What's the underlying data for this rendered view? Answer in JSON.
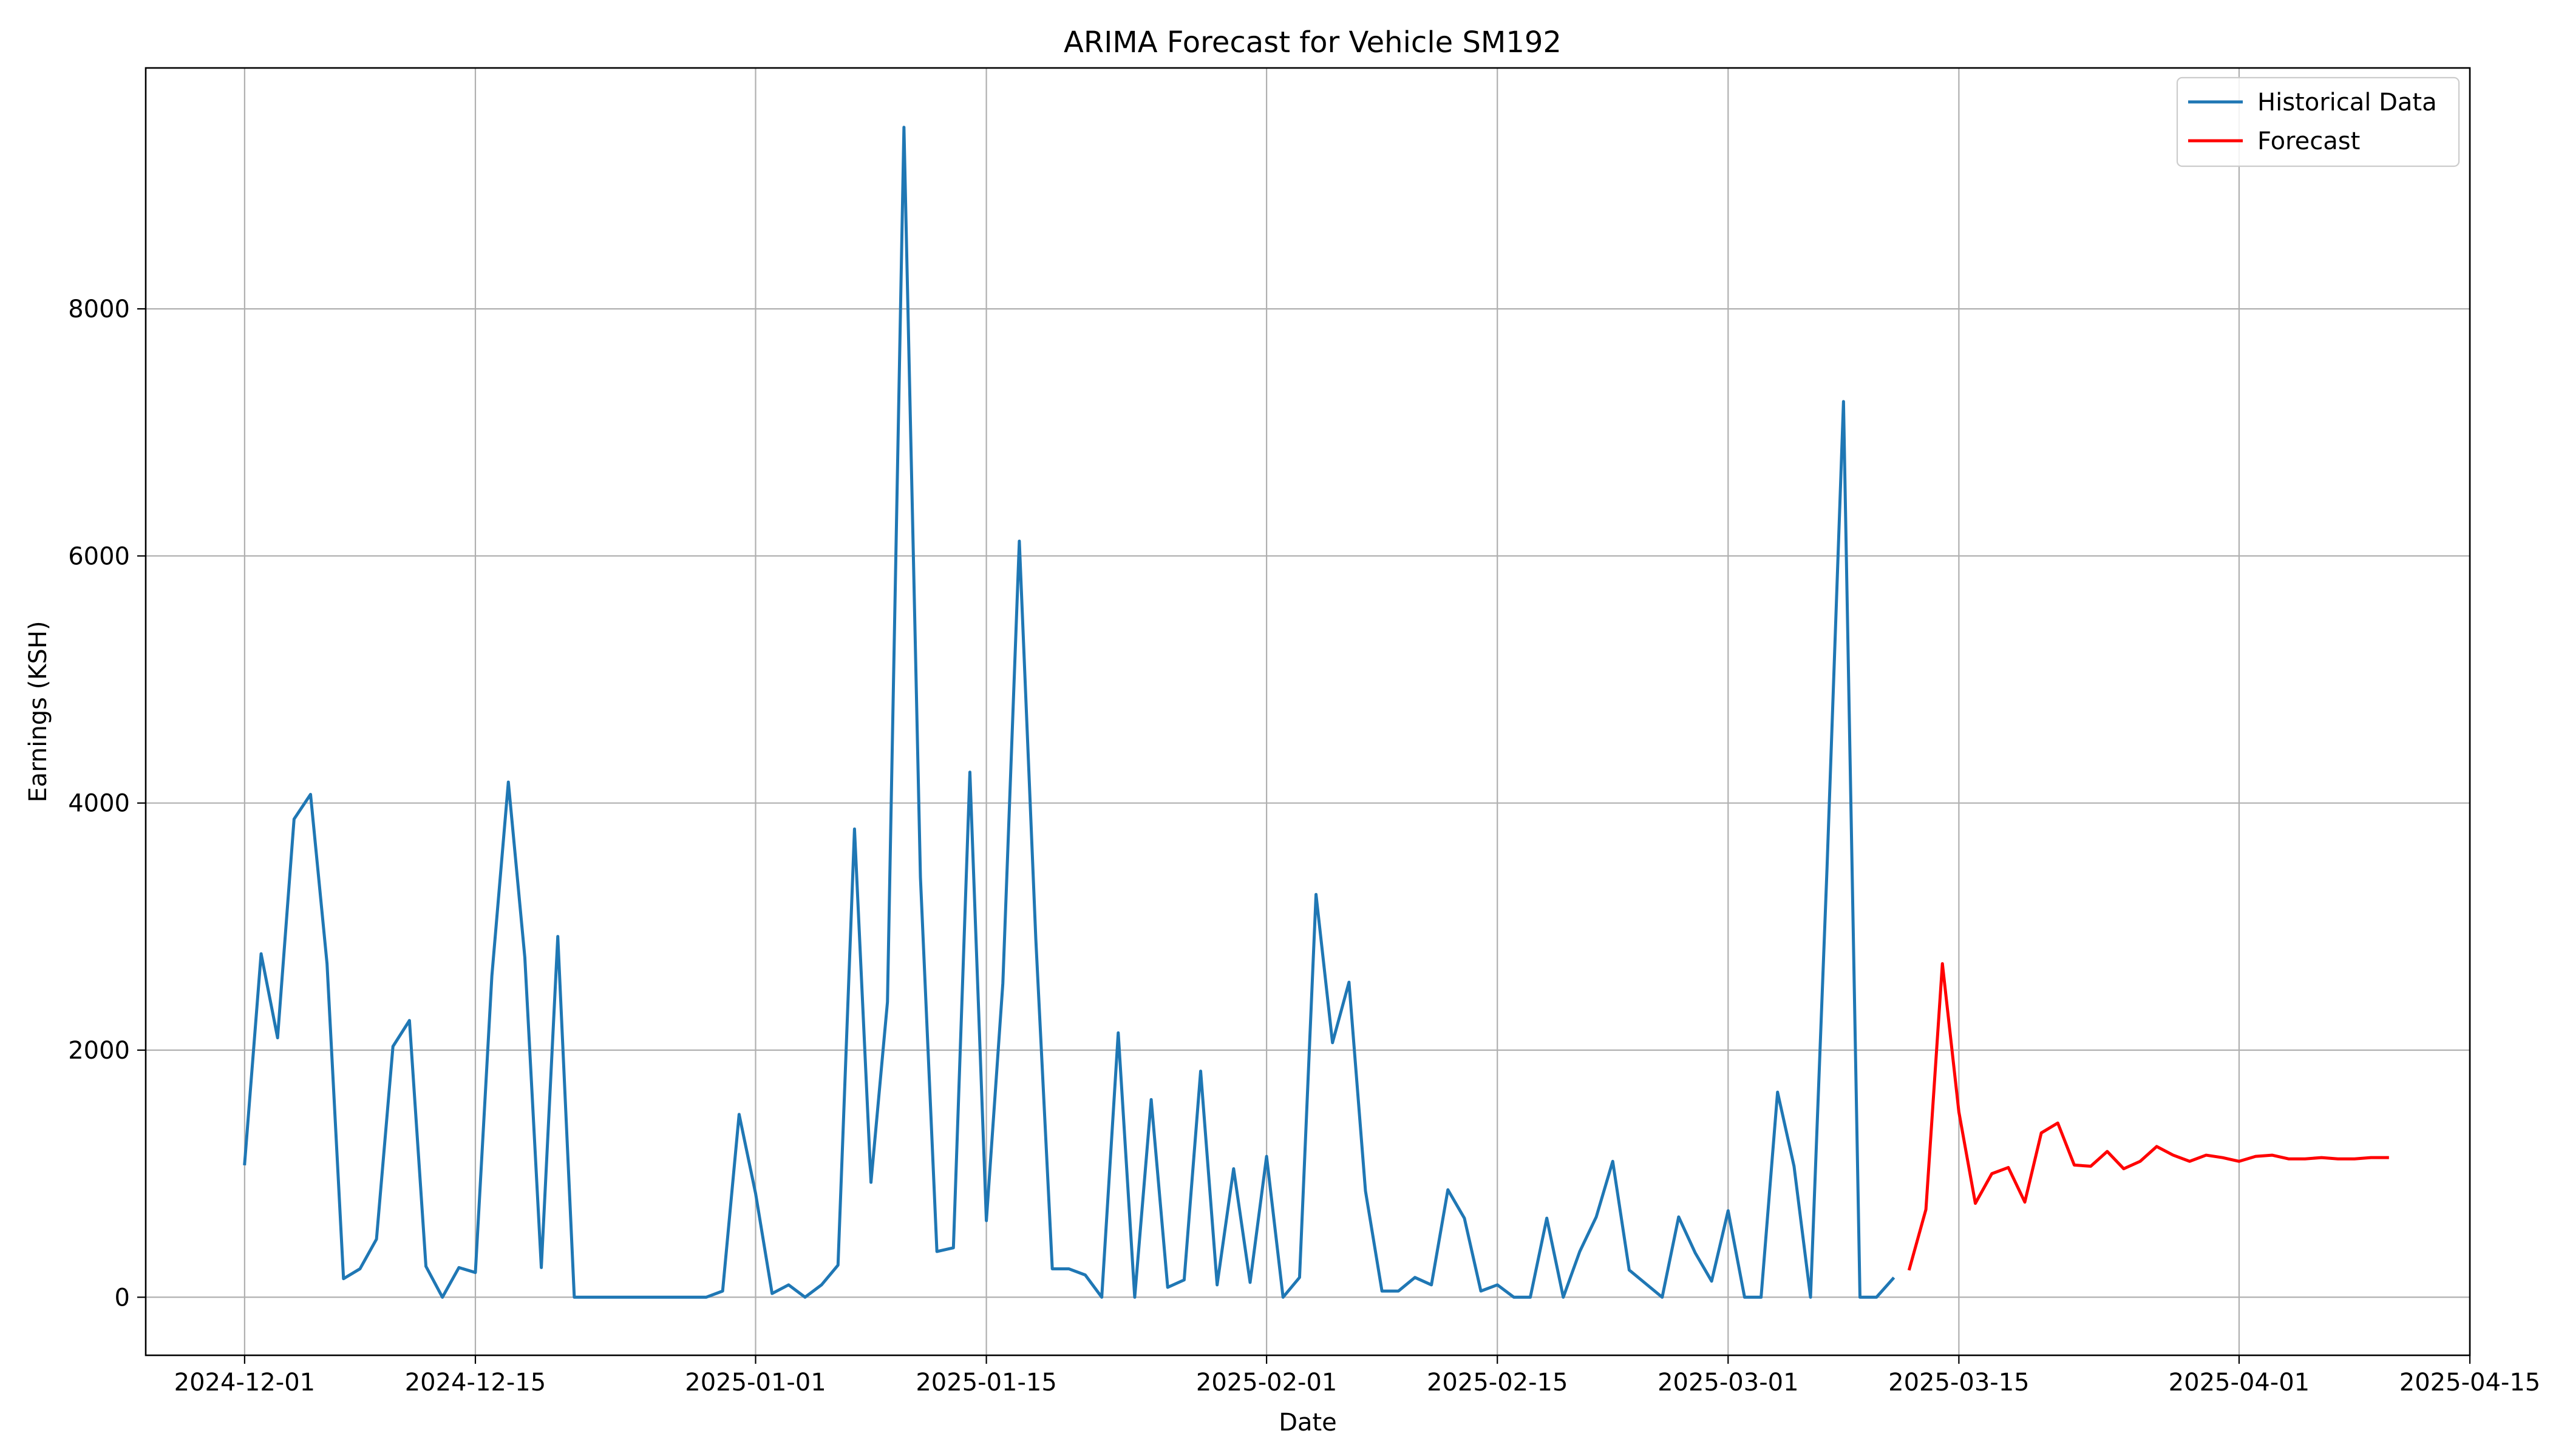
{
  "chart_data": {
    "type": "line",
    "title": "ARIMA Forecast for Vehicle SM192",
    "xlabel": "Date",
    "ylabel": "Earnings (KSH)",
    "xlim": [
      "2024-11-25",
      "2025-04-15"
    ],
    "ylim": [
      -470,
      9950
    ],
    "x_ticks": [
      "2024-12-01",
      "2024-12-15",
      "2025-01-01",
      "2025-01-15",
      "2025-02-01",
      "2025-02-15",
      "2025-03-01",
      "2025-03-15",
      "2025-04-01",
      "2025-04-15"
    ],
    "y_ticks": [
      0,
      2000,
      4000,
      6000,
      8000
    ],
    "y_tick_labels": [
      "0",
      "2000",
      "4000",
      "6000",
      "8000"
    ],
    "grid": true,
    "legend": "top-right",
    "series": [
      {
        "name": "Historical Data",
        "color": "#1f77b4",
        "start": "2024-12-01",
        "values": [
          1080,
          2780,
          2100,
          3870,
          4070,
          2700,
          150,
          230,
          470,
          2030,
          2240,
          250,
          0,
          240,
          200,
          2600,
          4170,
          2750,
          240,
          2920,
          0,
          0,
          0,
          0,
          0,
          0,
          0,
          0,
          0,
          50,
          1480,
          840,
          30,
          100,
          0,
          100,
          260,
          3790,
          930,
          2390,
          9470,
          3400,
          370,
          400,
          4250,
          620,
          2540,
          6120,
          2900,
          230,
          230,
          180,
          0,
          2140,
          0,
          1600,
          80,
          140,
          1830,
          100,
          1040,
          120,
          1140,
          0,
          160,
          3260,
          2060,
          2550,
          860,
          50,
          50,
          160,
          100,
          870,
          640,
          50,
          100,
          0,
          0,
          640,
          0,
          370,
          650,
          1100,
          220,
          110,
          0,
          650,
          360,
          130,
          700,
          0,
          0,
          1660,
          1060,
          0,
          3470,
          7250,
          0,
          0,
          150
        ]
      },
      {
        "name": "Forecast",
        "color": "#ff0000",
        "start": "2025-03-12",
        "values": [
          230,
          710,
          2700,
          1500,
          760,
          1000,
          1050,
          770,
          1330,
          1410,
          1070,
          1060,
          1180,
          1040,
          1100,
          1220,
          1150,
          1100,
          1150,
          1130,
          1100,
          1140,
          1150,
          1120,
          1120,
          1130,
          1120,
          1120,
          1130,
          1130
        ]
      }
    ]
  }
}
